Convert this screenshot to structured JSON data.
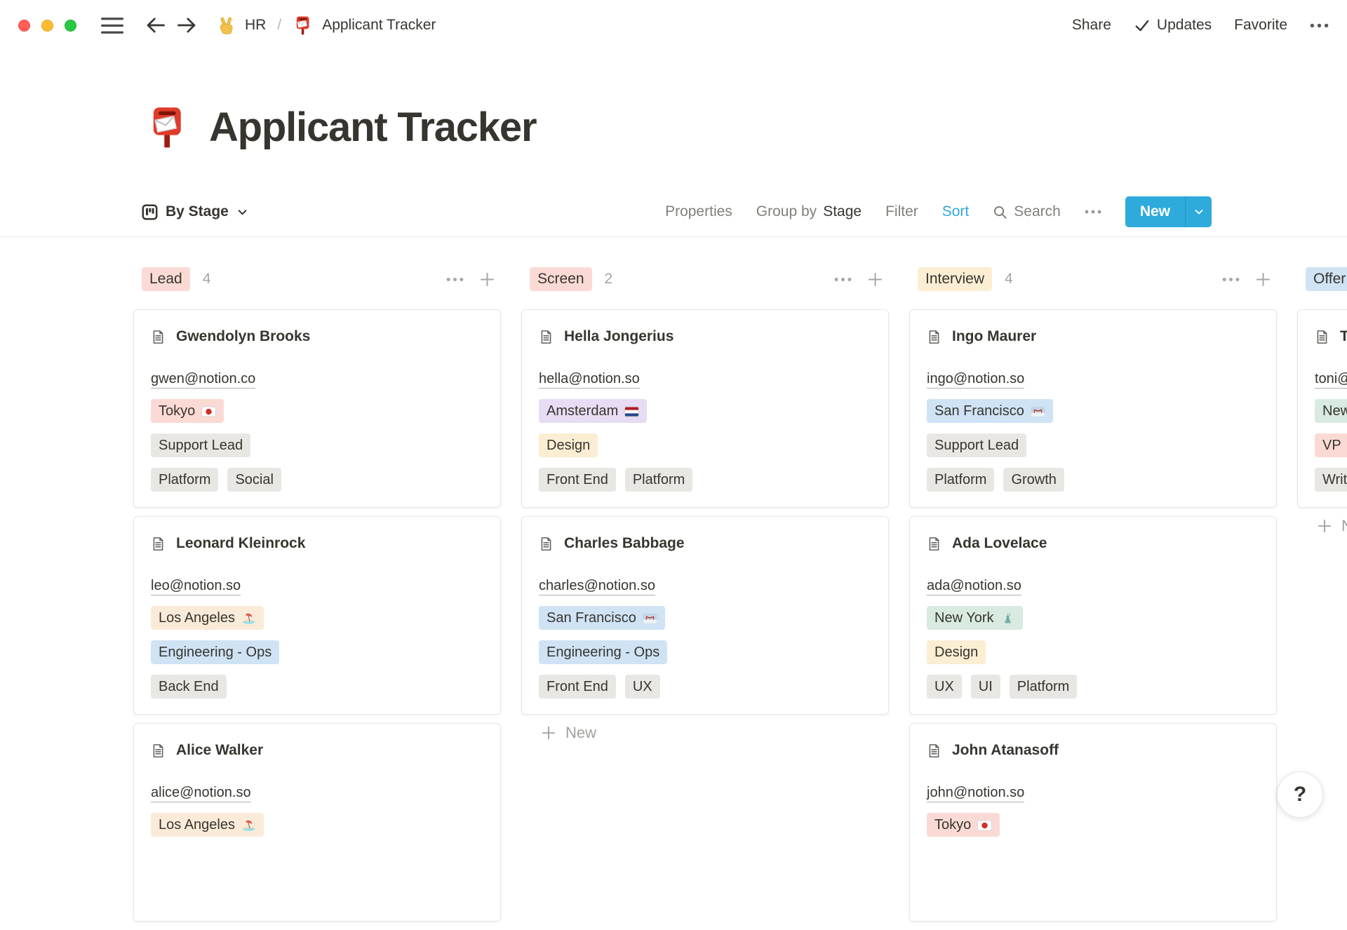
{
  "topbar": {
    "window_controls": [
      "close",
      "minimize",
      "zoom"
    ],
    "nav_icons": {
      "menu": "hamburger-icon",
      "back": "arrow-left-icon",
      "forward": "arrow-right-icon"
    },
    "breadcrumb": {
      "workspace_icon": "hand-victory-icon",
      "workspace": "HR",
      "separator": "/",
      "page_icon": "postbox-icon",
      "page": "Applicant Tracker"
    },
    "actions": {
      "share": "Share",
      "updates_icon": "check-icon",
      "updates": "Updates",
      "favorite": "Favorite",
      "more_icon": "ellipsis-icon"
    }
  },
  "page": {
    "icon": "postbox-icon",
    "title": "Applicant Tracker"
  },
  "toolbar": {
    "view": {
      "icon": "board-icon",
      "label": "By Stage",
      "chevron": "chevron-down-icon"
    },
    "properties": "Properties",
    "group_by": {
      "prefix": "Group by",
      "value": "Stage"
    },
    "filter": "Filter",
    "sort": "Sort",
    "search_icon": "search-icon",
    "search": "Search",
    "more_icon": "ellipsis-icon",
    "new_button": {
      "label": "New",
      "chevron": "chevron-down-icon",
      "color": "#2EAADC"
    }
  },
  "board": {
    "columns": [
      {
        "id": "lead",
        "label": "Lead",
        "count": "4",
        "pill_color": "red",
        "cards": [
          {
            "name": "Gwendolyn Brooks",
            "email": "gwen@notion.co",
            "tag_rows": [
              [
                {
                  "text": "Tokyo",
                  "icon": "flag-japan-icon",
                  "color": "red"
                }
              ],
              [
                {
                  "text": "Support Lead",
                  "color": "gray"
                }
              ],
              [
                {
                  "text": "Platform",
                  "color": "gray"
                },
                {
                  "text": "Social",
                  "color": "gray"
                }
              ]
            ]
          },
          {
            "name": "Leonard Kleinrock",
            "email": "leo@notion.so",
            "tag_rows": [
              [
                {
                  "text": "Los Angeles",
                  "icon": "beach-icon",
                  "color": "tan"
                }
              ],
              [
                {
                  "text": "Engineering - Ops",
                  "color": "blue"
                }
              ],
              [
                {
                  "text": "Back End",
                  "color": "gray"
                }
              ]
            ]
          },
          {
            "name": "Alice Walker",
            "email": "alice@notion.so",
            "tag_rows": [
              [
                {
                  "text": "Los Angeles",
                  "icon": "beach-icon",
                  "color": "tan"
                }
              ]
            ]
          }
        ]
      },
      {
        "id": "screen",
        "label": "Screen",
        "count": "2",
        "pill_color": "red",
        "cards": [
          {
            "name": "Hella Jongerius",
            "email": "hella@notion.so",
            "tag_rows": [
              [
                {
                  "text": "Amsterdam",
                  "icon": "flag-netherlands-icon",
                  "color": "purple"
                }
              ],
              [
                {
                  "text": "Design",
                  "color": "yellow"
                }
              ],
              [
                {
                  "text": "Front End",
                  "color": "gray"
                },
                {
                  "text": "Platform",
                  "color": "gray"
                }
              ]
            ]
          },
          {
            "name": "Charles Babbage",
            "email": "charles@notion.so",
            "tag_rows": [
              [
                {
                  "text": "San Francisco",
                  "icon": "bridge-icon",
                  "color": "blue"
                }
              ],
              [
                {
                  "text": "Engineering - Ops",
                  "color": "blue"
                }
              ],
              [
                {
                  "text": "Front End",
                  "color": "gray"
                },
                {
                  "text": "UX",
                  "color": "gray"
                }
              ]
            ]
          }
        ],
        "footer_new": "New"
      },
      {
        "id": "interview",
        "label": "Interview",
        "count": "4",
        "pill_color": "yellow",
        "cards": [
          {
            "name": "Ingo Maurer",
            "email": "ingo@notion.so",
            "tag_rows": [
              [
                {
                  "text": "San Francisco",
                  "icon": "bridge-icon",
                  "color": "blue"
                }
              ],
              [
                {
                  "text": "Support Lead",
                  "color": "gray"
                }
              ],
              [
                {
                  "text": "Platform",
                  "color": "gray"
                },
                {
                  "text": "Growth",
                  "color": "gray"
                }
              ]
            ]
          },
          {
            "name": "Ada Lovelace",
            "email": "ada@notion.so",
            "tag_rows": [
              [
                {
                  "text": "New York",
                  "icon": "statue-icon",
                  "color": "green"
                }
              ],
              [
                {
                  "text": "Design",
                  "color": "yellow"
                }
              ],
              [
                {
                  "text": "UX",
                  "color": "gray"
                },
                {
                  "text": "UI",
                  "color": "gray"
                },
                {
                  "text": "Platform",
                  "color": "gray"
                }
              ]
            ]
          },
          {
            "name": "John Atanasoff",
            "email": "john@notion.so",
            "tag_rows": [
              [
                {
                  "text": "Tokyo",
                  "icon": "flag-japan-icon",
                  "color": "red"
                }
              ]
            ]
          }
        ]
      },
      {
        "id": "offer",
        "label": "Offer",
        "count": "",
        "pill_color": "blue",
        "clipped": true,
        "cards": [
          {
            "name": "T",
            "email": "toni@",
            "tag_rows": [
              [
                {
                  "text": "New",
                  "color": "green"
                }
              ],
              [
                {
                  "text": "VP",
                  "color": "red"
                }
              ],
              [
                {
                  "text": "Writ",
                  "color": "gray"
                }
              ]
            ]
          }
        ],
        "footer_new": "New"
      }
    ]
  },
  "help_button": {
    "label": "?"
  },
  "colors": {
    "accent_blue": "#2EAADC",
    "text": "#37352F",
    "text_gray": "#9B9A97",
    "border": "#E9E9E7",
    "tag_red": "#FBDAD5",
    "tag_yellow": "#FBEED3",
    "tag_tan": "#FAEBD9",
    "tag_purple": "#E7DCF3",
    "tag_blue": "#CFE3F5",
    "tag_green": "#D9EBE1",
    "tag_gray": "#E8E7E4",
    "traffic_red": "#FF5F57",
    "traffic_yellow": "#FEBC2E",
    "traffic_green": "#28C840"
  }
}
